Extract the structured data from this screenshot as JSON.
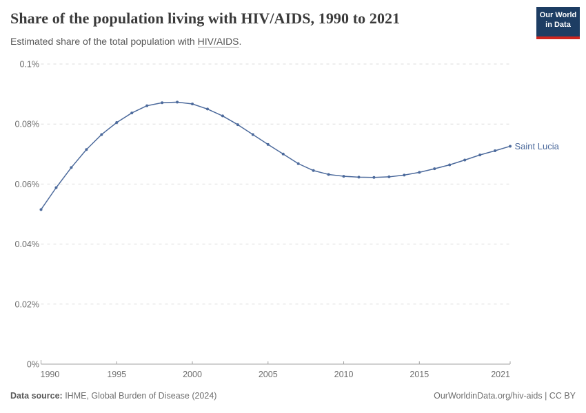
{
  "header": {
    "title": "Share of the population living with HIV/AIDS, 1990 to 2021",
    "subtitle_prefix": "Estimated share of the total population with ",
    "subtitle_link_text": "HIV/AIDS",
    "subtitle_suffix": "."
  },
  "logo": {
    "line1": "Our World",
    "line2": "in Data",
    "bg_color": "#1d3d63",
    "accent_color": "#ce261f"
  },
  "chart_data": {
    "type": "line",
    "title": "Share of the population living with HIV/AIDS, 1990 to 2021",
    "subtitle": "Estimated share of the total population with HIV/AIDS.",
    "unit": "%",
    "grid": "horizontal-dashed",
    "legend_position": "end-of-line-label",
    "xlim": [
      1990,
      2021
    ],
    "ylim": [
      0,
      0.1
    ],
    "x": [
      1990,
      1991,
      1992,
      1993,
      1994,
      1995,
      1996,
      1997,
      1998,
      1999,
      2000,
      2001,
      2002,
      2003,
      2004,
      2005,
      2006,
      2007,
      2008,
      2009,
      2010,
      2011,
      2012,
      2013,
      2014,
      2015,
      2016,
      2017,
      2018,
      2019,
      2020,
      2021
    ],
    "series": [
      {
        "name": "Saint Lucia",
        "color": "#4C6A9C",
        "values": [
          0.0515,
          0.0588,
          0.0655,
          0.0715,
          0.0765,
          0.0805,
          0.0837,
          0.0861,
          0.0871,
          0.0873,
          0.0867,
          0.085,
          0.0827,
          0.0798,
          0.0765,
          0.0732,
          0.07,
          0.0668,
          0.0645,
          0.0632,
          0.0626,
          0.0623,
          0.0622,
          0.0624,
          0.063,
          0.0639,
          0.0651,
          0.0664,
          0.068,
          0.0697,
          0.0711,
          0.0726
        ]
      }
    ],
    "y_ticks": [
      {
        "value": 0,
        "label": "0%"
      },
      {
        "value": 0.02,
        "label": "0.02%"
      },
      {
        "value": 0.04,
        "label": "0.04%"
      },
      {
        "value": 0.06,
        "label": "0.06%"
      },
      {
        "value": 0.08,
        "label": "0.08%"
      },
      {
        "value": 0.1,
        "label": "0.1%"
      }
    ],
    "x_ticks": [
      {
        "value": 1990,
        "label": "1990"
      },
      {
        "value": 1995,
        "label": "1995"
      },
      {
        "value": 2000,
        "label": "2000"
      },
      {
        "value": 2005,
        "label": "2005"
      },
      {
        "value": 2010,
        "label": "2010"
      },
      {
        "value": 2015,
        "label": "2015"
      },
      {
        "value": 2021,
        "label": "2021"
      }
    ]
  },
  "colors": {
    "grid": "#dcdcdc",
    "axis": "#a0a0a0",
    "tick_text": "#6e6e6e"
  },
  "footer": {
    "source_label": "Data source:",
    "source_value": " IHME, Global Burden of Disease (2024)",
    "right_text": "OurWorldinData.org/hiv-aids | CC BY"
  }
}
